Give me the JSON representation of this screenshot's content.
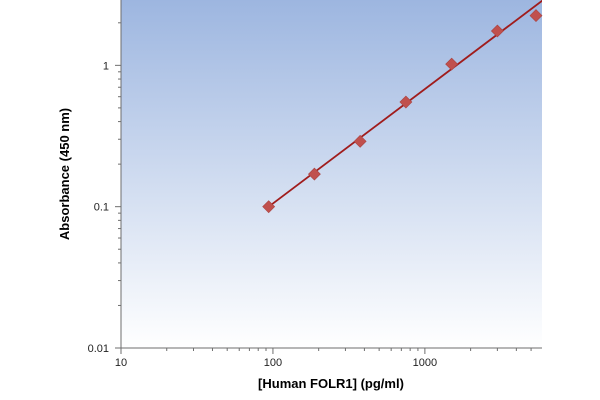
{
  "chart_data": {
    "type": "scatter",
    "title": "",
    "xlabel": "[Human FOLR1] (pg/ml)",
    "ylabel": "Absorbance (450 nm)",
    "x_scale": "log",
    "y_scale": "log",
    "xlim": [
      10,
      5900
    ],
    "ylim": [
      0.01,
      2.9
    ],
    "x_ticks": [
      10,
      100,
      1000
    ],
    "x_tick_labels": [
      "10",
      "100",
      "1000"
    ],
    "y_ticks": [
      0.01,
      0.1,
      1
    ],
    "y_tick_labels": [
      "0.01",
      "0.1",
      "1"
    ],
    "grid": false,
    "legend": "none",
    "series": [
      {
        "marker": "diamond",
        "color": "#c0504d",
        "x": [
          93.75,
          187.5,
          375,
          750,
          1500,
          3000,
          6000
        ],
        "y": [
          0.1,
          0.17,
          0.29,
          0.55,
          1.02,
          1.75,
          2.25
        ]
      }
    ],
    "fit_line": {
      "type": "power",
      "color": "#a01c1c",
      "x_range": [
        93.75,
        5900
      ],
      "points": [
        [
          93.75,
          0.1
        ],
        [
          6000,
          2.9
        ]
      ]
    },
    "plot_background": {
      "gradient_top": "#9db6e0",
      "gradient_bottom": "#ffffff"
    }
  }
}
